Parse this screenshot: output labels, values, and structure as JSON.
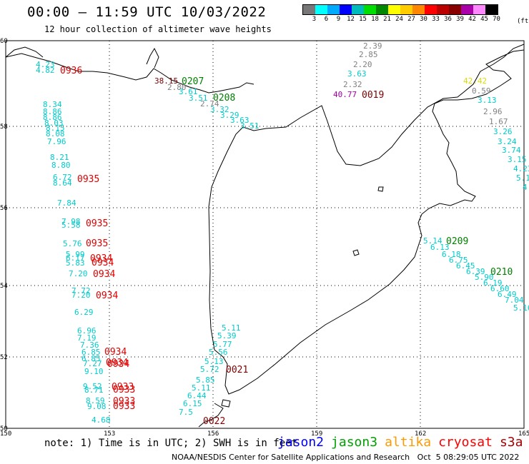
{
  "header": {
    "title": "00:00 – 11:59 UTC 10/03/2022",
    "subtitle": "12 hour collection of altimeter wave heights"
  },
  "legend": {
    "unit": "(ft)",
    "colors": [
      "#777777",
      "#00ffff",
      "#00aaff",
      "#0000ff",
      "#00bbbb",
      "#00dd00",
      "#008800",
      "#ffff00",
      "#ffcc00",
      "#ff8800",
      "#ff0000",
      "#bb0000",
      "#880000",
      "#aa00aa",
      "#ff88ff",
      "#000000"
    ],
    "labels": [
      "3",
      "6",
      "9",
      "12",
      "15",
      "18",
      "21",
      "24",
      "27",
      "30",
      "33",
      "36",
      "39",
      "42",
      "45",
      "70"
    ]
  },
  "axes": {
    "lon_labels": [
      "150",
      "153",
      "156",
      "159",
      "162",
      "165"
    ],
    "lat_labels": [
      "60",
      "58",
      "56",
      "54",
      "52",
      "50"
    ]
  },
  "colors": {
    "cyan": "#00cccc",
    "gray": "#808080",
    "red": "#e00000",
    "green": "#008000",
    "darkred": "#800000",
    "purple": "#a000a0",
    "yellow": "#dddd00"
  },
  "swh_labels": [
    {
      "t": "4.23",
      "c": "cyan"
    },
    {
      "t": "4.82",
      "c": "cyan"
    },
    {
      "t": "2.39",
      "c": "gray"
    },
    {
      "t": "2.85",
      "c": "gray"
    },
    {
      "t": "2.20",
      "c": "gray"
    },
    {
      "t": "3.63",
      "c": "cyan"
    },
    {
      "t": "2.32",
      "c": "gray"
    },
    {
      "t": "40.77",
      "c": "purple"
    },
    {
      "t": "38.15",
      "c": "darkred"
    },
    {
      "t": "2.80",
      "c": "gray"
    },
    {
      "t": "3.61",
      "c": "cyan"
    },
    {
      "t": "3.51",
      "c": "cyan"
    },
    {
      "t": "2.74",
      "c": "gray"
    },
    {
      "t": "3.32",
      "c": "cyan"
    },
    {
      "t": "3.29",
      "c": "cyan"
    },
    {
      "t": "3.63",
      "c": "cyan"
    },
    {
      "t": "3.51",
      "c": "cyan"
    },
    {
      "t": "42.42",
      "c": "yellow"
    },
    {
      "t": "0.59",
      "c": "gray"
    },
    {
      "t": "3.13",
      "c": "cyan"
    },
    {
      "t": "2.96",
      "c": "gray"
    },
    {
      "t": "1.67",
      "c": "gray"
    },
    {
      "t": "3.26",
      "c": "cyan"
    },
    {
      "t": "3.24",
      "c": "cyan"
    },
    {
      "t": "3.74",
      "c": "cyan"
    },
    {
      "t": "3.15",
      "c": "cyan"
    },
    {
      "t": "4.23",
      "c": "cyan"
    },
    {
      "t": "5.1",
      "c": "cyan"
    },
    {
      "t": "4.",
      "c": "cyan"
    },
    {
      "t": "8.34",
      "c": "cyan"
    },
    {
      "t": "8.86",
      "c": "cyan"
    },
    {
      "t": "8.86",
      "c": "cyan"
    },
    {
      "t": "8.03",
      "c": "cyan"
    },
    {
      "t": "8.15",
      "c": "cyan"
    },
    {
      "t": "8.08",
      "c": "cyan"
    },
    {
      "t": "7.96",
      "c": "cyan"
    },
    {
      "t": "8.21",
      "c": "cyan"
    },
    {
      "t": "8.80",
      "c": "cyan"
    },
    {
      "t": "6.72",
      "c": "cyan"
    },
    {
      "t": "8.64",
      "c": "cyan"
    },
    {
      "t": "7.84",
      "c": "cyan"
    },
    {
      "t": "7.98",
      "c": "cyan"
    },
    {
      "t": "5.58",
      "c": "cyan"
    },
    {
      "t": "5.76",
      "c": "cyan"
    },
    {
      "t": "5.99",
      "c": "cyan"
    },
    {
      "t": "6.17",
      "c": "cyan"
    },
    {
      "t": "5.83",
      "c": "cyan"
    },
    {
      "t": "7.20",
      "c": "cyan"
    },
    {
      "t": "7.72",
      "c": "cyan"
    },
    {
      "t": "7.20",
      "c": "cyan"
    },
    {
      "t": "6.29",
      "c": "cyan"
    },
    {
      "t": "6.96",
      "c": "cyan"
    },
    {
      "t": "7.19",
      "c": "cyan"
    },
    {
      "t": "7.36",
      "c": "cyan"
    },
    {
      "t": "6.85",
      "c": "cyan"
    },
    {
      "t": "6.85",
      "c": "cyan"
    },
    {
      "t": "7.27",
      "c": "cyan"
    },
    {
      "t": "9.10",
      "c": "cyan"
    },
    {
      "t": "9.52",
      "c": "cyan"
    },
    {
      "t": "8.71",
      "c": "cyan"
    },
    {
      "t": "8.59",
      "c": "cyan"
    },
    {
      "t": "9.08",
      "c": "cyan"
    },
    {
      "t": "4.68",
      "c": "cyan"
    },
    {
      "t": "5.14",
      "c": "cyan"
    },
    {
      "t": "6.13",
      "c": "cyan"
    },
    {
      "t": "6.18",
      "c": "cyan"
    },
    {
      "t": "6.75",
      "c": "cyan"
    },
    {
      "t": "6.45",
      "c": "cyan"
    },
    {
      "t": "6.39",
      "c": "cyan"
    },
    {
      "t": "5.90",
      "c": "cyan"
    },
    {
      "t": "6.19",
      "c": "cyan"
    },
    {
      "t": "6.60",
      "c": "cyan"
    },
    {
      "t": "6.49",
      "c": "cyan"
    },
    {
      "t": "7.04",
      "c": "cyan"
    },
    {
      "t": "5.16",
      "c": "cyan"
    },
    {
      "t": "5.11",
      "c": "cyan"
    },
    {
      "t": "5.39",
      "c": "cyan"
    },
    {
      "t": "5.77",
      "c": "cyan"
    },
    {
      "t": "5.56",
      "c": "cyan"
    },
    {
      "t": "5.13",
      "c": "cyan"
    },
    {
      "t": "5.72",
      "c": "cyan"
    },
    {
      "t": "5.85",
      "c": "cyan"
    },
    {
      "t": "5.11",
      "c": "cyan"
    },
    {
      "t": "6.44",
      "c": "cyan"
    },
    {
      "t": "6.15",
      "c": "cyan"
    },
    {
      "t": "7.5",
      "c": "cyan"
    }
  ],
  "time_labels": [
    {
      "t": "0936",
      "c": "red"
    },
    {
      "t": "0207",
      "c": "green"
    },
    {
      "t": "0208",
      "c": "green"
    },
    {
      "t": "0019",
      "c": "darkred"
    },
    {
      "t": "0935",
      "c": "red"
    },
    {
      "t": "0935",
      "c": "red"
    },
    {
      "t": "0935",
      "c": "red"
    },
    {
      "t": "0934",
      "c": "red"
    },
    {
      "t": "0934",
      "c": "red"
    },
    {
      "t": "0934",
      "c": "red"
    },
    {
      "t": "0934",
      "c": "red"
    },
    {
      "t": "0934",
      "c": "red"
    },
    {
      "t": "0934",
      "c": "red"
    },
    {
      "t": "0934",
      "c": "red"
    },
    {
      "t": "0933",
      "c": "red"
    },
    {
      "t": "0933",
      "c": "red"
    },
    {
      "t": "0933",
      "c": "red"
    },
    {
      "t": "0933",
      "c": "red"
    },
    {
      "t": "0209",
      "c": "green"
    },
    {
      "t": "0210",
      "c": "green"
    },
    {
      "t": "0021",
      "c": "darkred"
    },
    {
      "t": "0022",
      "c": "darkred"
    }
  ],
  "note": "note: 1) Time is in UTC; 2) SWH is in feet",
  "satellites": [
    {
      "name": "jason2",
      "color": "#0000ff"
    },
    {
      "name": "jason3",
      "color": "#00a000"
    },
    {
      "name": "altika",
      "color": "#ff9900"
    },
    {
      "name": "cryosat",
      "color": "#ff0000"
    },
    {
      "name": "s3a",
      "color": "#aa0000"
    }
  ],
  "footer": "NOAA/NESDIS Center for Satellite Applications and Research   Oct  5 08:29:05 UTC 2022"
}
